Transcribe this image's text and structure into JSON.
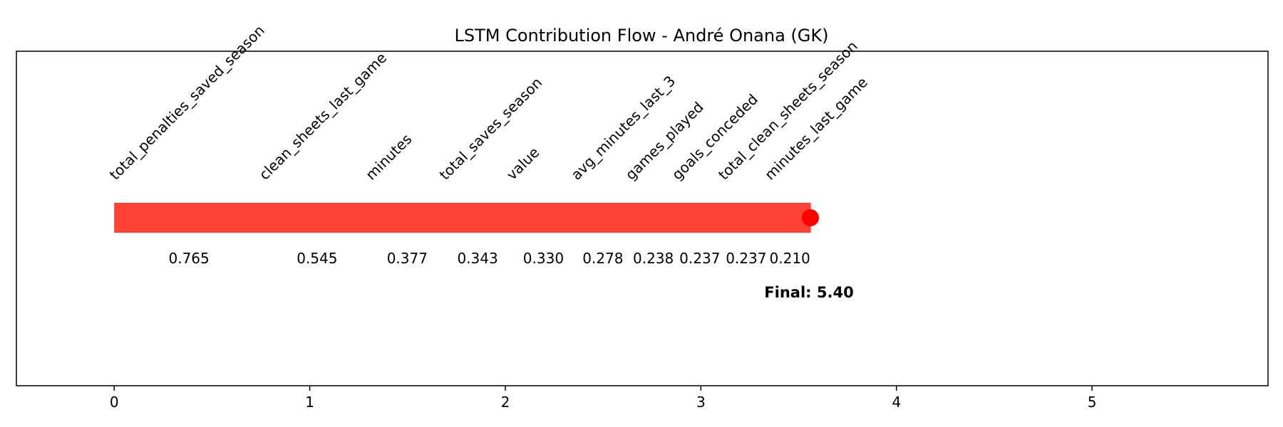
{
  "chart_data": {
    "type": "bar",
    "title": "LSTM Contribution Flow - André Onana (GK)",
    "xlabel": "",
    "ylabel": "",
    "xlim": [
      -0.5,
      5.9
    ],
    "x_ticks": [
      "0",
      "1",
      "2",
      "3",
      "4",
      "5"
    ],
    "grid": false,
    "bar_color": "#ff4136",
    "marker_color": "#ff0000",
    "segments": [
      {
        "feature": "total_penalties_saved_season",
        "value": 0.765,
        "label": "0.765"
      },
      {
        "feature": "clean_sheets_last_game",
        "value": 0.545,
        "label": "0.545"
      },
      {
        "feature": "minutes",
        "value": 0.377,
        "label": "0.377"
      },
      {
        "feature": "total_saves_season",
        "value": 0.343,
        "label": "0.343"
      },
      {
        "feature": "value",
        "value": 0.33,
        "label": "0.330"
      },
      {
        "feature": "avg_minutes_last_3",
        "value": 0.278,
        "label": "0.278"
      },
      {
        "feature": "games_played",
        "value": 0.238,
        "label": "0.238"
      },
      {
        "feature": "goals_conceded",
        "value": 0.237,
        "label": "0.237"
      },
      {
        "feature": "total_clean_sheets_season",
        "value": 0.237,
        "label": "0.237"
      },
      {
        "feature": "minutes_last_game",
        "value": 0.21,
        "label": "0.210"
      }
    ],
    "final_label": "Final: 5.40"
  }
}
